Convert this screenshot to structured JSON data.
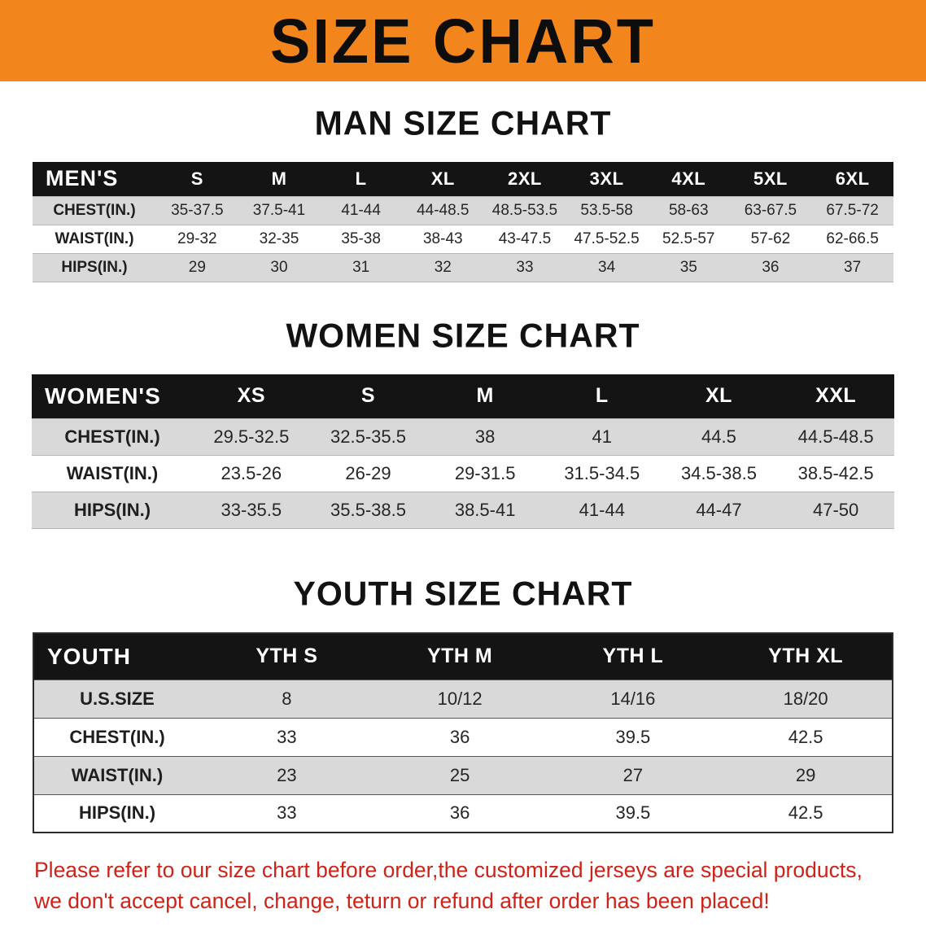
{
  "banner": {
    "title": "SIZE CHART"
  },
  "chart_data": [
    {
      "type": "table",
      "title": "MAN SIZE CHART",
      "columns": [
        "MEN'S",
        "S",
        "M",
        "L",
        "XL",
        "2XL",
        "3XL",
        "4XL",
        "5XL",
        "6XL"
      ],
      "rows": [
        [
          "CHEST(IN.)",
          "35-37.5",
          "37.5-41",
          "41-44",
          "44-48.5",
          "48.5-53.5",
          "53.5-58",
          "58-63",
          "63-67.5",
          "67.5-72"
        ],
        [
          "WAIST(IN.)",
          "29-32",
          "32-35",
          "35-38",
          "38-43",
          "43-47.5",
          "47.5-52.5",
          "52.5-57",
          "57-62",
          "62-66.5"
        ],
        [
          "HIPS(IN.)",
          "29",
          "30",
          "31",
          "32",
          "33",
          "34",
          "35",
          "36",
          "37"
        ]
      ]
    },
    {
      "type": "table",
      "title": "WOMEN SIZE CHART",
      "columns": [
        "WOMEN'S",
        "XS",
        "S",
        "M",
        "L",
        "XL",
        "XXL"
      ],
      "rows": [
        [
          "CHEST(IN.)",
          "29.5-32.5",
          "32.5-35.5",
          "38",
          "41",
          "44.5",
          "44.5-48.5"
        ],
        [
          "WAIST(IN.)",
          "23.5-26",
          "26-29",
          "29-31.5",
          "31.5-34.5",
          "34.5-38.5",
          "38.5-42.5"
        ],
        [
          "HIPS(IN.)",
          "33-35.5",
          "35.5-38.5",
          "38.5-41",
          "41-44",
          "44-47",
          "47-50"
        ]
      ]
    },
    {
      "type": "table",
      "title": "YOUTH SIZE CHART",
      "columns": [
        "YOUTH",
        "YTH S",
        "YTH M",
        "YTH L",
        "YTH XL"
      ],
      "rows": [
        [
          "U.S.SIZE",
          "8",
          "10/12",
          "14/16",
          "18/20"
        ],
        [
          "CHEST(IN.)",
          "33",
          "36",
          "39.5",
          "42.5"
        ],
        [
          "WAIST(IN.)",
          "23",
          "25",
          "27",
          "29"
        ],
        [
          "HIPS(IN.)",
          "33",
          "36",
          "39.5",
          "42.5"
        ]
      ]
    }
  ],
  "footnote": {
    "line1": "Please refer to our size chart before order,the customized jerseys are special products,",
    "line2": "we don't accept cancel, change, teturn or refund after order has been placed!"
  },
  "colors": {
    "banner_bg": "#f2861d",
    "header_bg": "#141414",
    "row_alt_bg": "#d9d9d9",
    "note_color": "#cd2318"
  }
}
